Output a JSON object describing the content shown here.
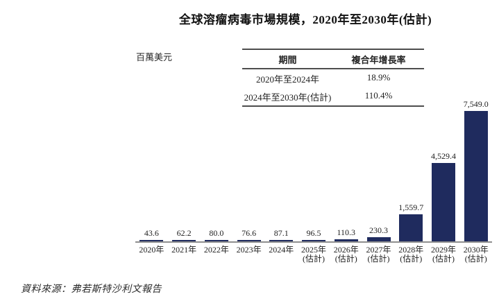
{
  "title": "全球溶瘤病毒市場規模，2020年至2030年(估計)",
  "unit_label": "百萬美元",
  "cagr_table": {
    "headers": [
      "期間",
      "複合年增長率"
    ],
    "rows": [
      [
        "2020年至2024年",
        "18.9%"
      ],
      [
        "2024年至2030年(估計)",
        "110.4%"
      ]
    ]
  },
  "source": "資料來源：弗若斯特沙利文報告",
  "colors": {
    "bar": "#1f2b5e",
    "axis": "#8f8f8f",
    "text": "#1a1a1a"
  },
  "chart_data": {
    "type": "bar",
    "title": "全球溶瘤病毒市場規模，2020年至2030年(估計)",
    "ylabel": "百萬美元",
    "xlabel": "",
    "categories": [
      "2020年",
      "2021年",
      "2022年",
      "2023年",
      "2024年",
      "2025年",
      "2026年",
      "2027年",
      "2028年",
      "2029年",
      "2030年"
    ],
    "category_notes": [
      "",
      "",
      "",
      "",
      "",
      "(估計)",
      "(估計)",
      "(估計)",
      "(估計)",
      "(估計)",
      "(估計)"
    ],
    "values": [
      43.6,
      62.2,
      80.0,
      76.6,
      87.1,
      96.5,
      110.3,
      230.3,
      1559.7,
      4529.4,
      7549.0
    ],
    "value_labels": [
      "43.6",
      "62.2",
      "80.0",
      "76.6",
      "87.1",
      "96.5",
      "110.3",
      "230.3",
      "1,559.7",
      "4,529.4",
      "7,549.0"
    ],
    "ylim": [
      0,
      7549
    ],
    "grid": false,
    "legend": null,
    "bar_color": "#1f2b5e"
  }
}
